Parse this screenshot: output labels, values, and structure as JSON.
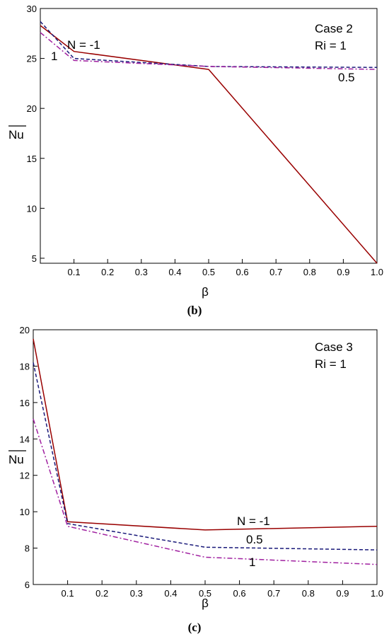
{
  "chart_data": [
    {
      "type": "line",
      "caption": "(b)",
      "xlabel": "β",
      "ylabel": "Nu",
      "annotation_lines": [
        "Case 2",
        "Ri = 1"
      ],
      "xlim": [
        0.0,
        1.0
      ],
      "ylim": [
        4.5,
        30
      ],
      "xticks": [
        0.1,
        0.2,
        0.3,
        0.4,
        0.5,
        0.6,
        0.7,
        0.8,
        0.9,
        1.0
      ],
      "xtick_labels": [
        "0.1",
        "0.2",
        "0.3",
        "0.4",
        "0.5",
        "0.6",
        "0.7",
        "0.8",
        "0.9",
        "1.0"
      ],
      "yticks": [
        5,
        10,
        15,
        20,
        25,
        30
      ],
      "ytick_labels": [
        "5",
        "10",
        "15",
        "20",
        "25",
        "30"
      ],
      "x": [
        0.0,
        0.1,
        0.5,
        1.0
      ],
      "series": [
        {
          "label": "N = -1",
          "values": [
            28.3,
            25.7,
            23.9,
            4.5
          ],
          "color": "#990000",
          "dash": "solid"
        },
        {
          "label": "0.5",
          "values": [
            28.7,
            25.0,
            24.2,
            24.1
          ],
          "color": "#1a1a7a",
          "dash": "dashed"
        },
        {
          "label": "1",
          "values": [
            27.6,
            24.8,
            24.2,
            23.9
          ],
          "color": "#a020a0",
          "dash": "dashdot"
        }
      ]
    },
    {
      "type": "line",
      "caption": "(c)",
      "xlabel": "β",
      "ylabel": "Nu",
      "annotation_lines": [
        "Case 3",
        "Ri = 1"
      ],
      "xlim": [
        0.0,
        1.0
      ],
      "ylim": [
        6,
        20
      ],
      "xticks": [
        0.1,
        0.2,
        0.3,
        0.4,
        0.5,
        0.6,
        0.7,
        0.8,
        0.9,
        1.0
      ],
      "xtick_labels": [
        "0.1",
        "0.2",
        "0.3",
        "0.4",
        "0.5",
        "0.6",
        "0.7",
        "0.8",
        "0.9",
        "1.0"
      ],
      "yticks": [
        6,
        8,
        10,
        12,
        14,
        16,
        18,
        20
      ],
      "ytick_labels": [
        "6",
        "8",
        "10",
        "12",
        "14",
        "16",
        "18",
        "20"
      ],
      "x": [
        0.0,
        0.1,
        0.5,
        1.0
      ],
      "series": [
        {
          "label": "N = -1",
          "values": [
            19.5,
            9.45,
            9.0,
            9.2
          ],
          "color": "#990000",
          "dash": "solid"
        },
        {
          "label": "0.5",
          "values": [
            18.2,
            9.35,
            8.05,
            7.9
          ],
          "color": "#1a1a7a",
          "dash": "dashed"
        },
        {
          "label": "1",
          "values": [
            15.1,
            9.2,
            7.5,
            7.1
          ],
          "color": "#a020a0",
          "dash": "dashdot"
        }
      ]
    }
  ]
}
